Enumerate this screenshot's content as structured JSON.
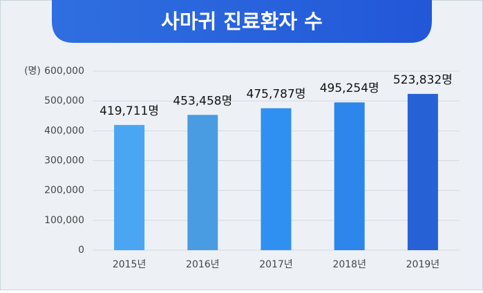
{
  "chart_data": {
    "type": "bar",
    "title": "사마귀 진료환자 수",
    "y_unit": "(명)",
    "categories": [
      "2015년",
      "2016년",
      "2017년",
      "2018년",
      "2019년"
    ],
    "values": [
      419711,
      453458,
      475787,
      495254,
      523832
    ],
    "value_labels": [
      "419,711명",
      "453,458명",
      "475,787명",
      "495,254명",
      "523,832명"
    ],
    "colors": [
      "#4aa6f2",
      "#4a9ce2",
      "#2f90f2",
      "#2c86ec",
      "#2761d6"
    ],
    "ylim": [
      0,
      600000
    ],
    "yticks": [
      0,
      {
        "value": 100000,
        "label": "100,000"
      },
      {
        "value": 200000,
        "label": "200,000"
      },
      {
        "value": 300000,
        "label": "300,000"
      },
      {
        "value": 400000,
        "label": "400,000"
      },
      {
        "value": 500000,
        "label": "500,000"
      },
      {
        "value": 600000,
        "label": "600,000"
      }
    ],
    "grid": true
  }
}
